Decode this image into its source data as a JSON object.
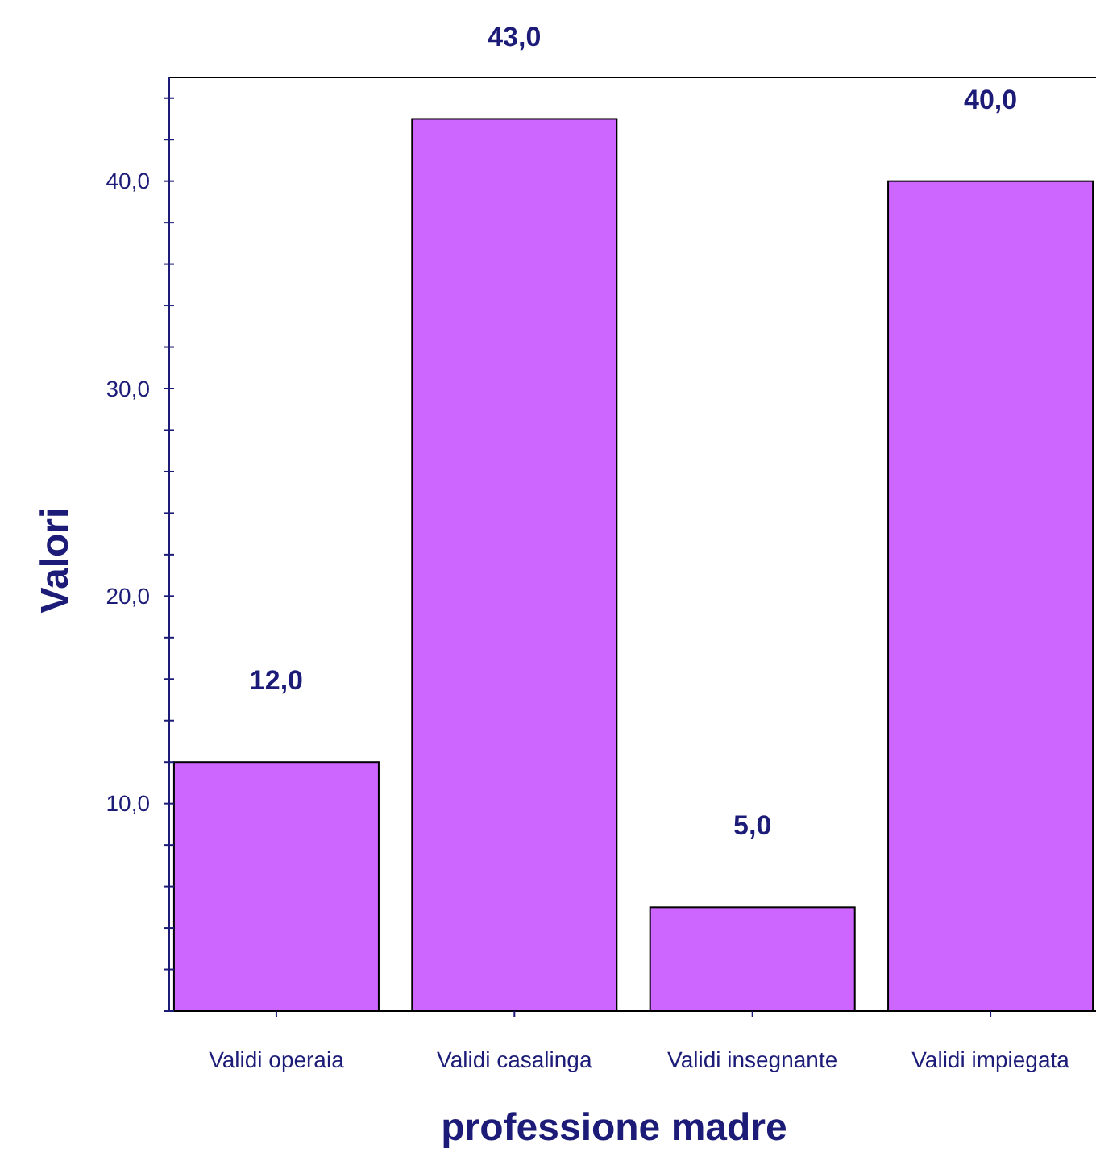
{
  "chart_data": {
    "type": "bar",
    "xlabel": "professione madre",
    "ylabel": "Valori",
    "categories": [
      "Validi operaia",
      "Validi casalinga",
      "Validi insegnante",
      "Validi impiegata"
    ],
    "values": [
      12,
      43,
      5,
      40
    ],
    "value_labels": [
      "12,0",
      "43,0",
      "5,0",
      "40,0"
    ],
    "color": "#cc66ff",
    "ylim": [
      0,
      45
    ],
    "yticks": [
      {
        "value": 0,
        "label": null
      },
      {
        "value": 2,
        "label": null
      },
      {
        "value": 4,
        "label": null
      },
      {
        "value": 6,
        "label": null
      },
      {
        "value": 8,
        "label": null
      },
      {
        "value": 10,
        "label": "10,0"
      },
      {
        "value": 12,
        "label": null
      },
      {
        "value": 14,
        "label": null
      },
      {
        "value": 16,
        "label": null
      },
      {
        "value": 18,
        "label": null
      },
      {
        "value": 20,
        "label": "20,0"
      },
      {
        "value": 22,
        "label": null
      },
      {
        "value": 24,
        "label": null
      },
      {
        "value": 26,
        "label": null
      },
      {
        "value": 28,
        "label": null
      },
      {
        "value": 30,
        "label": "30,0"
      },
      {
        "value": 32,
        "label": null
      },
      {
        "value": 34,
        "label": null
      },
      {
        "value": 36,
        "label": null
      },
      {
        "value": 38,
        "label": null
      },
      {
        "value": 40,
        "label": "40,0"
      },
      {
        "value": 42,
        "label": null
      },
      {
        "value": 44,
        "label": null
      }
    ],
    "grid": false
  }
}
